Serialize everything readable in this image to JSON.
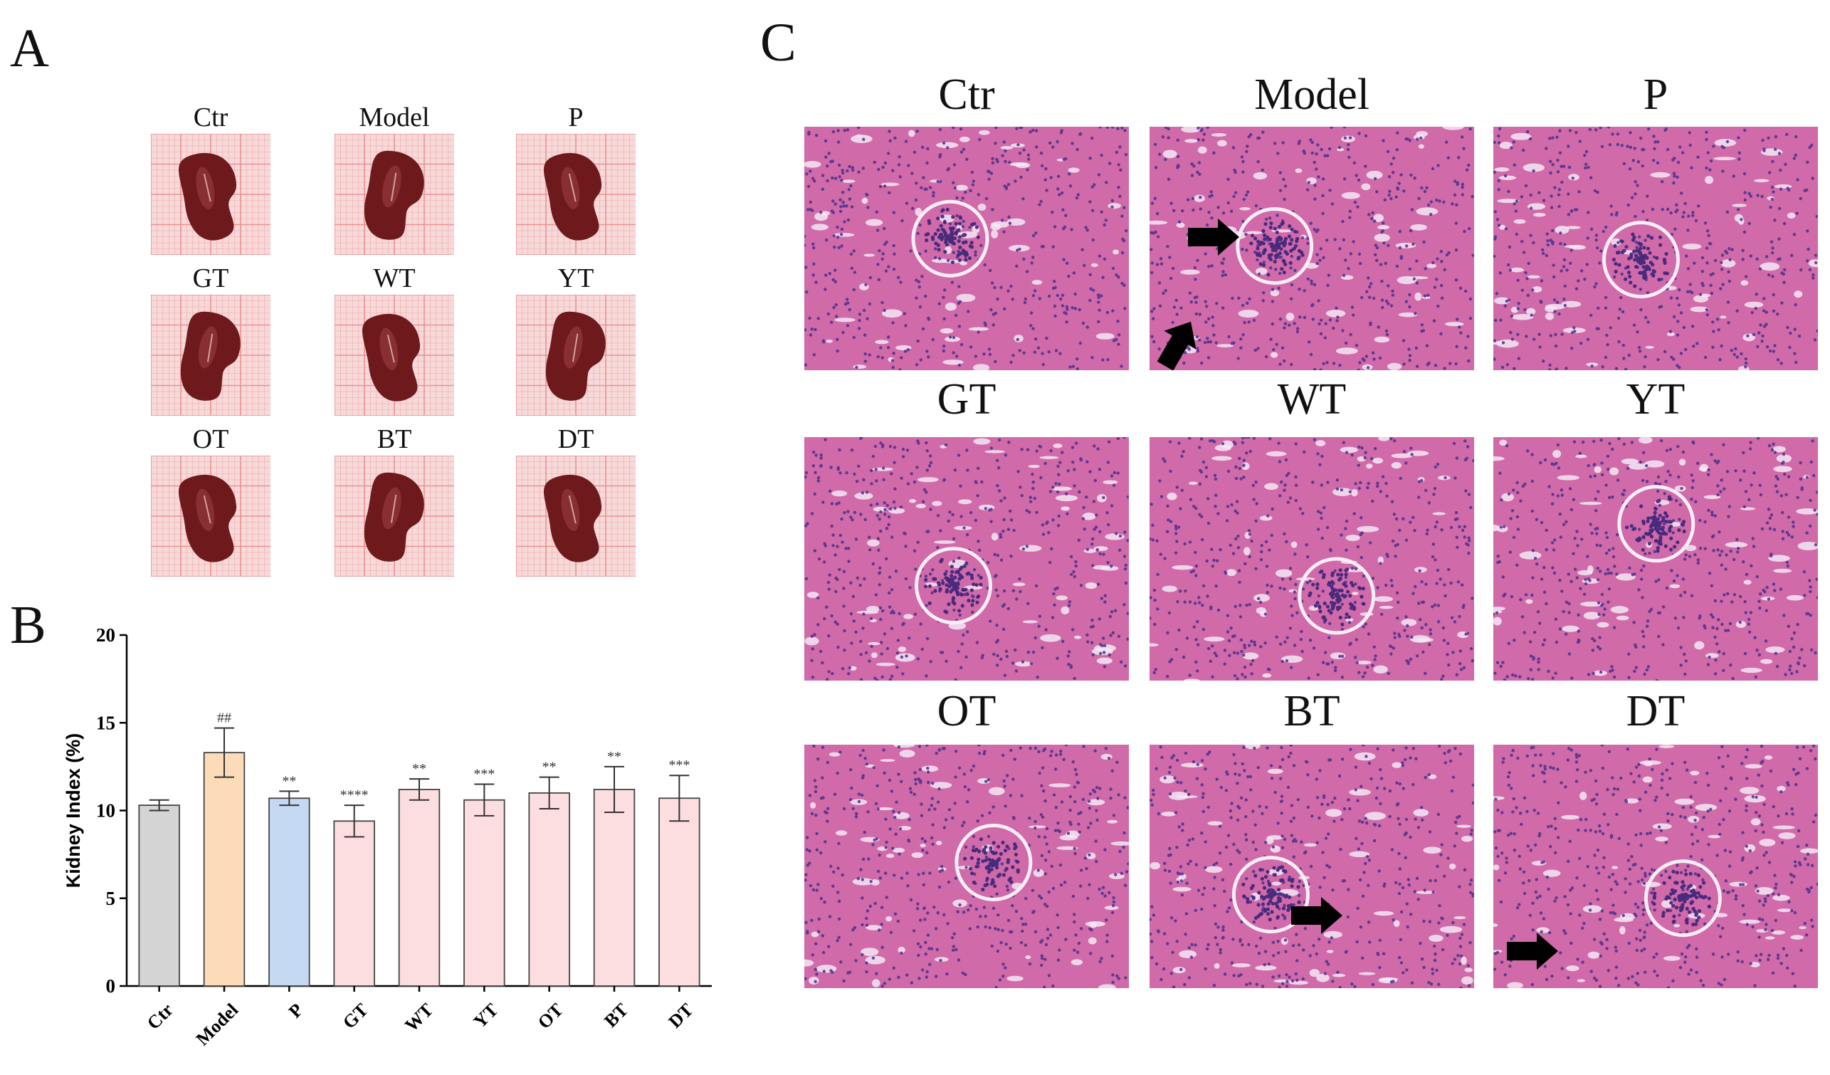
{
  "panels": {
    "a": "A",
    "b": "B",
    "c": "C"
  },
  "groups": [
    "Ctr",
    "Model",
    "P",
    "GT",
    "WT",
    "YT",
    "OT",
    "BT",
    "DT"
  ],
  "colors": {
    "grid_paper": "#f7d9d9",
    "grid_line": "#e88b8b",
    "kidney": "#6e1a1c",
    "kidney_highlight": "#b95a5a",
    "tissue": "#d06aa8",
    "nuclei": "#4a2f8c",
    "lumen": "#f3e8f4",
    "arrow": "#000000",
    "bar_ctr": "#d4d4d4",
    "bar_model": "#fcdcb8",
    "bar_p": "#c4d8f2",
    "bar_treat": "#fcdde0"
  },
  "chart_data": {
    "type": "bar",
    "categories": [
      "Ctr",
      "Model",
      "P",
      "GT",
      "WT",
      "YT",
      "OT",
      "BT",
      "DT"
    ],
    "values": [
      10.3,
      13.3,
      10.7,
      9.4,
      11.2,
      10.6,
      11.0,
      11.2,
      10.7
    ],
    "errors": [
      0.3,
      1.4,
      0.4,
      0.9,
      0.6,
      0.9,
      0.9,
      1.3,
      1.3
    ],
    "annotations": [
      "",
      "##",
      "**",
      "****",
      "**",
      "***",
      "**",
      "**",
      "***"
    ],
    "bar_colors": [
      "#d4d4d4",
      "#fcdcb8",
      "#c4d8f2",
      "#fcdde0",
      "#fcdde0",
      "#fcdde0",
      "#fcdde0",
      "#fcdde0",
      "#fcdde0"
    ],
    "ylabel": "Kidney Index (%)",
    "xlabel": "",
    "ylim": [
      0,
      20
    ],
    "yticks": [
      0,
      5,
      10,
      15,
      20
    ]
  },
  "histology": {
    "arrows": {
      "Model": [
        "right",
        "up-right"
      ],
      "BT": [
        "right"
      ],
      "DT": [
        "right"
      ]
    }
  }
}
